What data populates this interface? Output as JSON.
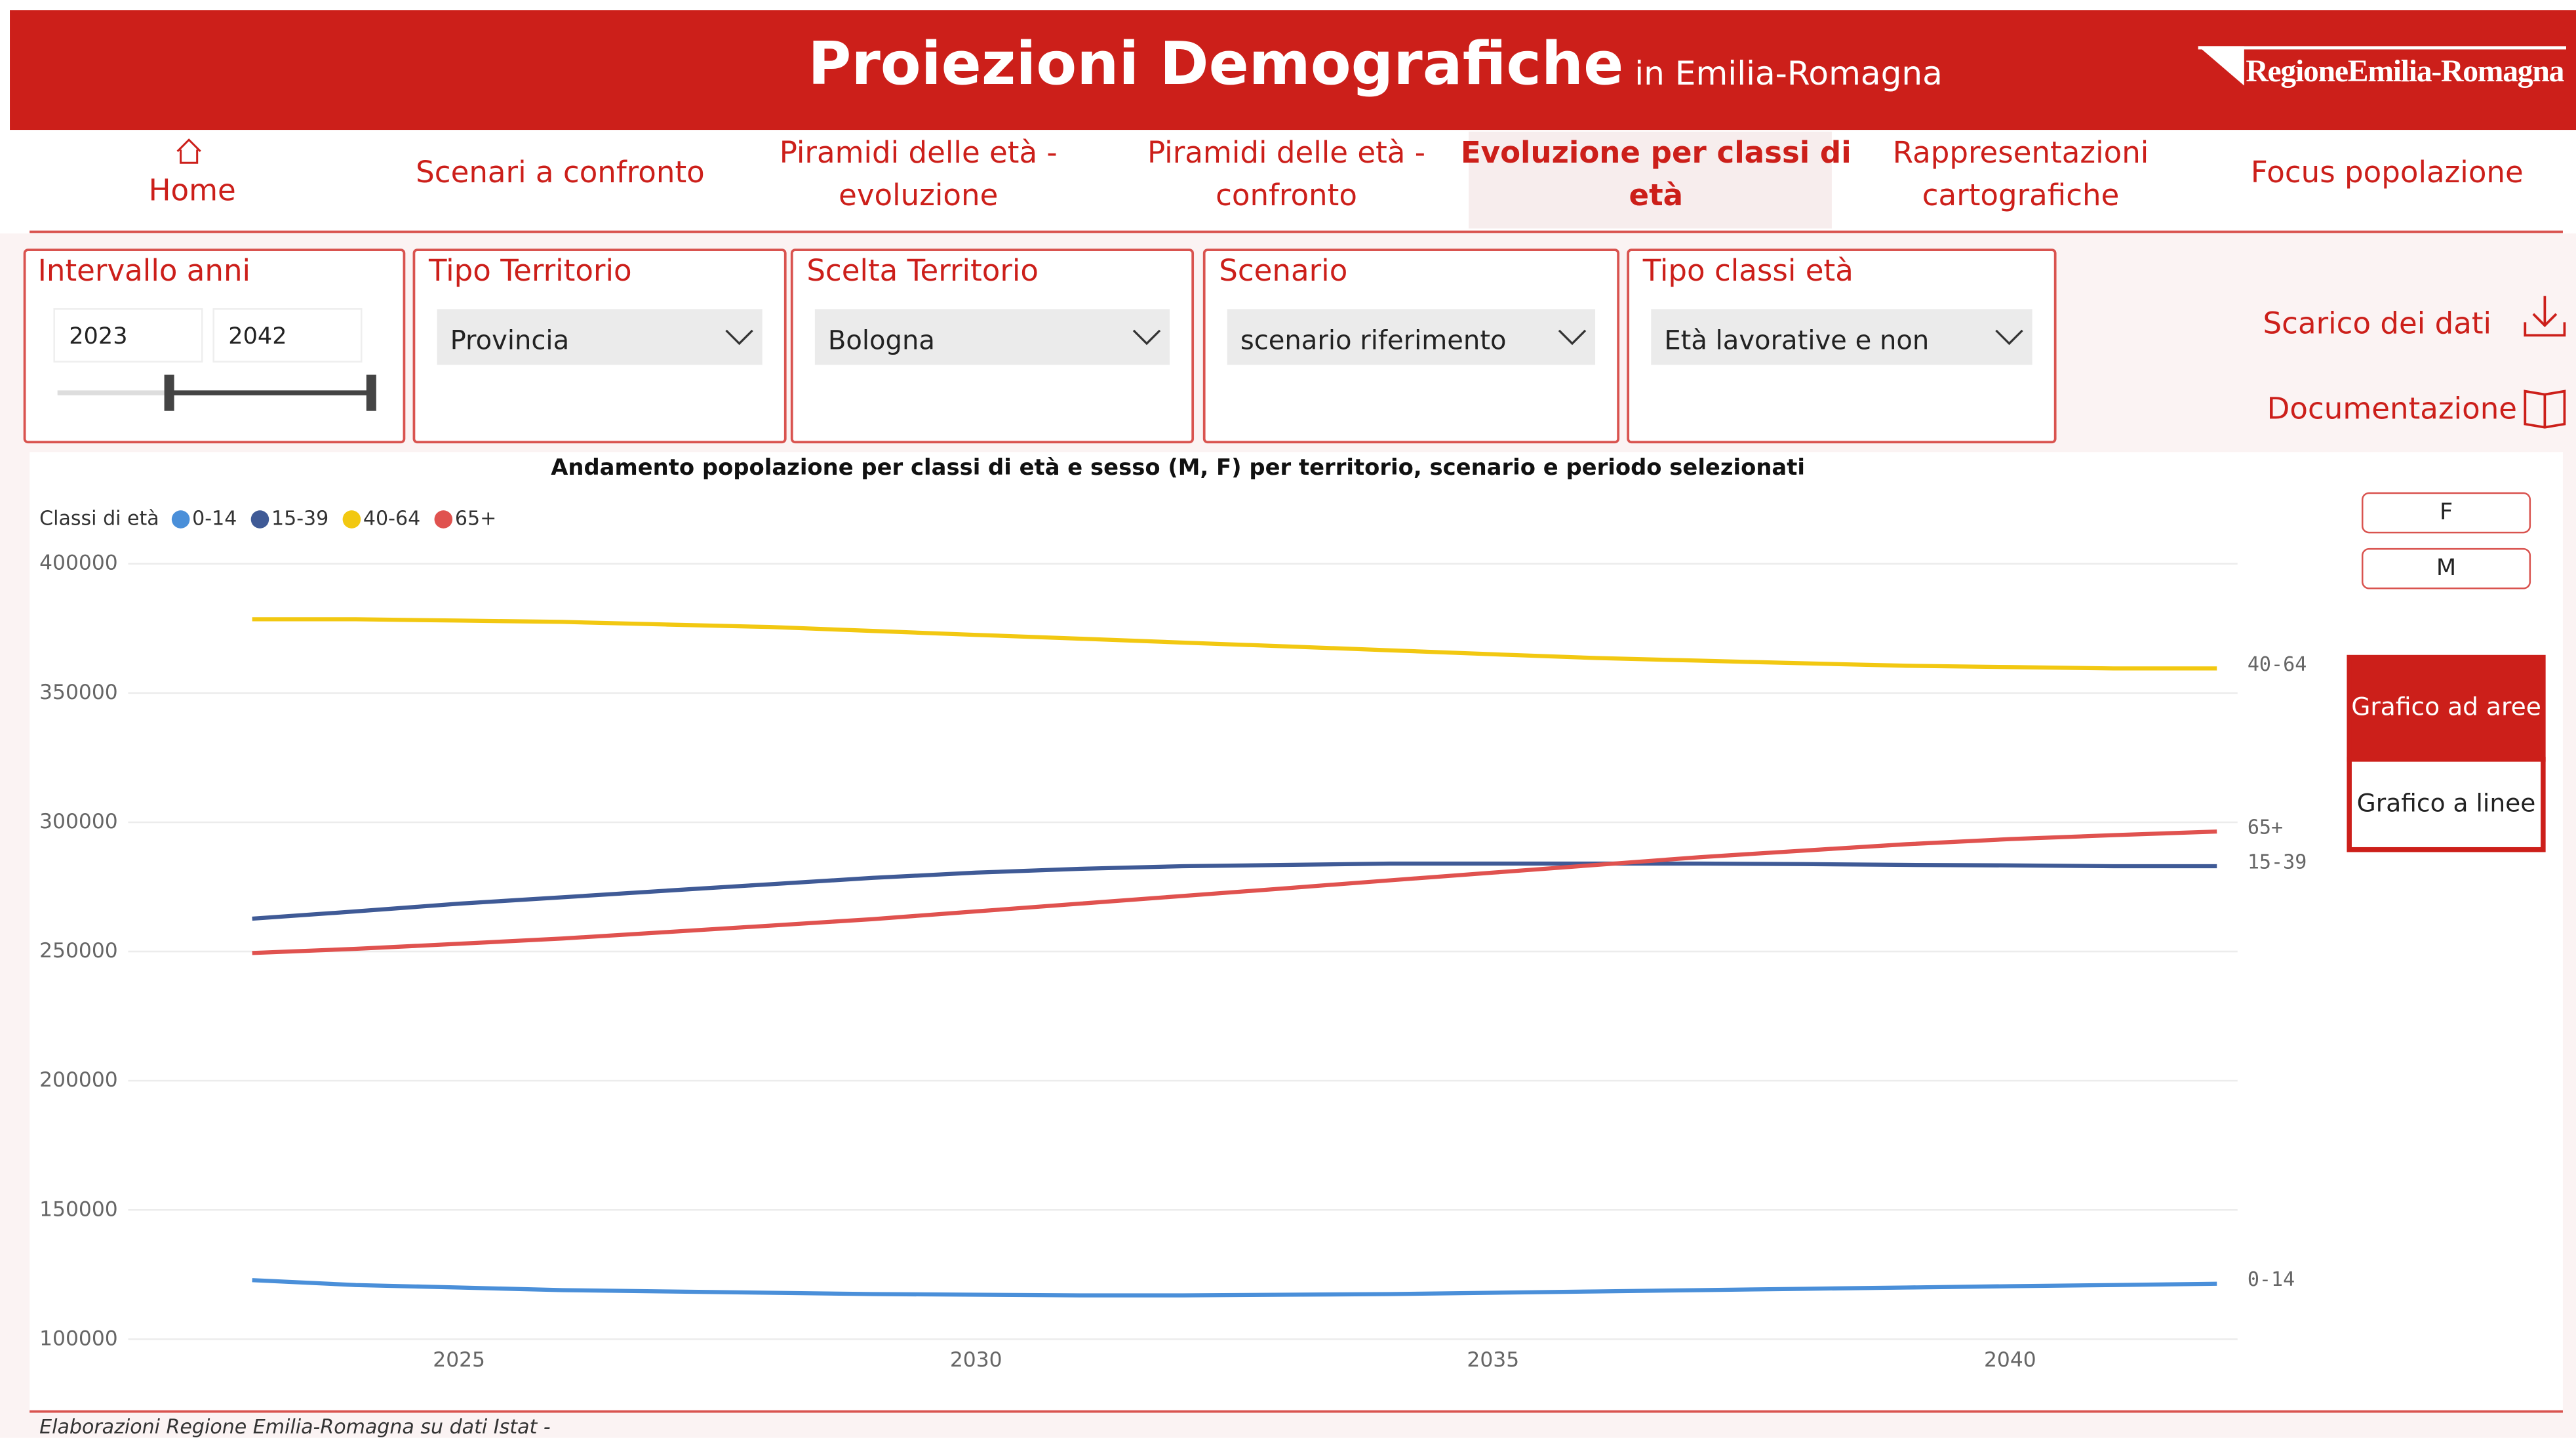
{
  "header": {
    "title": "Proiezioni Demografiche",
    "subtitle": "in Emilia-Romagna",
    "logo": "RegioneEmilia-Romagna"
  },
  "nav": {
    "items": [
      {
        "lines": [
          "Home"
        ]
      },
      {
        "lines": [
          "Scenari a confronto"
        ]
      },
      {
        "lines": [
          "Piramidi delle età -",
          "evoluzione"
        ]
      },
      {
        "lines": [
          "Piramidi delle età -",
          "confronto"
        ]
      },
      {
        "lines": [
          "Evoluzione per classi di",
          "età"
        ]
      },
      {
        "lines": [
          "Rappresentazioni",
          "cartografiche"
        ]
      },
      {
        "lines": [
          "Focus popolazione"
        ]
      }
    ],
    "active": 4
  },
  "filters": {
    "years": {
      "label": "Intervallo anni",
      "from": "2023",
      "to": "2042"
    },
    "dropdowns": [
      {
        "label": "Tipo Territorio",
        "value": "Provincia"
      },
      {
        "label": "Scelta Territorio",
        "value": "Bologna"
      },
      {
        "label": "Scenario",
        "value": "scenario riferimento"
      },
      {
        "label": "Tipo classi età",
        "value": "Età lavorative e non"
      }
    ]
  },
  "links": {
    "download": "Scarico dei dati",
    "docs": "Documentazione"
  },
  "buttons": {
    "sex": [
      "F",
      "M"
    ],
    "chart_mode": [
      "Grafico ad aree",
      "Grafico a linee"
    ],
    "active_mode": 0
  },
  "chart_data": {
    "type": "line",
    "title": "Andamento popolazione per classi di età e sesso (M, F) per territorio, scenario e periodo selezionati",
    "legend_title": "Classi di età",
    "legend": "top-left",
    "grid": true,
    "x": [
      2023,
      2024,
      2025,
      2026,
      2027,
      2028,
      2029,
      2030,
      2031,
      2032,
      2033,
      2034,
      2035,
      2036,
      2037,
      2038,
      2039,
      2040,
      2041,
      2042
    ],
    "xlim": [
      2021.8,
      2042.2
    ],
    "xticks": [
      2025,
      2030,
      2035,
      2040
    ],
    "ylim": [
      100000,
      400000
    ],
    "yticks": [
      100000,
      150000,
      200000,
      250000,
      300000,
      350000,
      400000
    ],
    "series": [
      {
        "name": "0-14",
        "color": "#4a8fd9",
        "values": [
          122900,
          121000,
          120000,
          119000,
          118500,
          118000,
          117500,
          117200,
          117000,
          117000,
          117200,
          117500,
          118000,
          118500,
          119000,
          119500,
          120000,
          120500,
          121000,
          121500
        ]
      },
      {
        "name": "15-39",
        "color": "#3f5a96",
        "values": [
          262700,
          265500,
          268500,
          271000,
          273500,
          276000,
          278500,
          280500,
          282000,
          283000,
          283500,
          284000,
          284000,
          284000,
          284000,
          283800,
          283500,
          283300,
          283000,
          283000
        ]
      },
      {
        "name": "40-64",
        "color": "#f2c811",
        "values": [
          378500,
          378500,
          378000,
          377500,
          376500,
          375500,
          374000,
          372500,
          371000,
          369500,
          368000,
          366500,
          365000,
          363500,
          362500,
          361500,
          360500,
          360000,
          359500,
          359500
        ]
      },
      {
        "name": "65+",
        "color": "#e0524f",
        "values": [
          249400,
          251000,
          253000,
          255000,
          257500,
          260000,
          262500,
          265500,
          268500,
          271500,
          274500,
          277500,
          280500,
          283500,
          286500,
          289000,
          291500,
          293500,
          295000,
          296400
        ]
      }
    ]
  },
  "footer": "Elaborazioni Regione Emilia-Romagna su dati Istat -"
}
